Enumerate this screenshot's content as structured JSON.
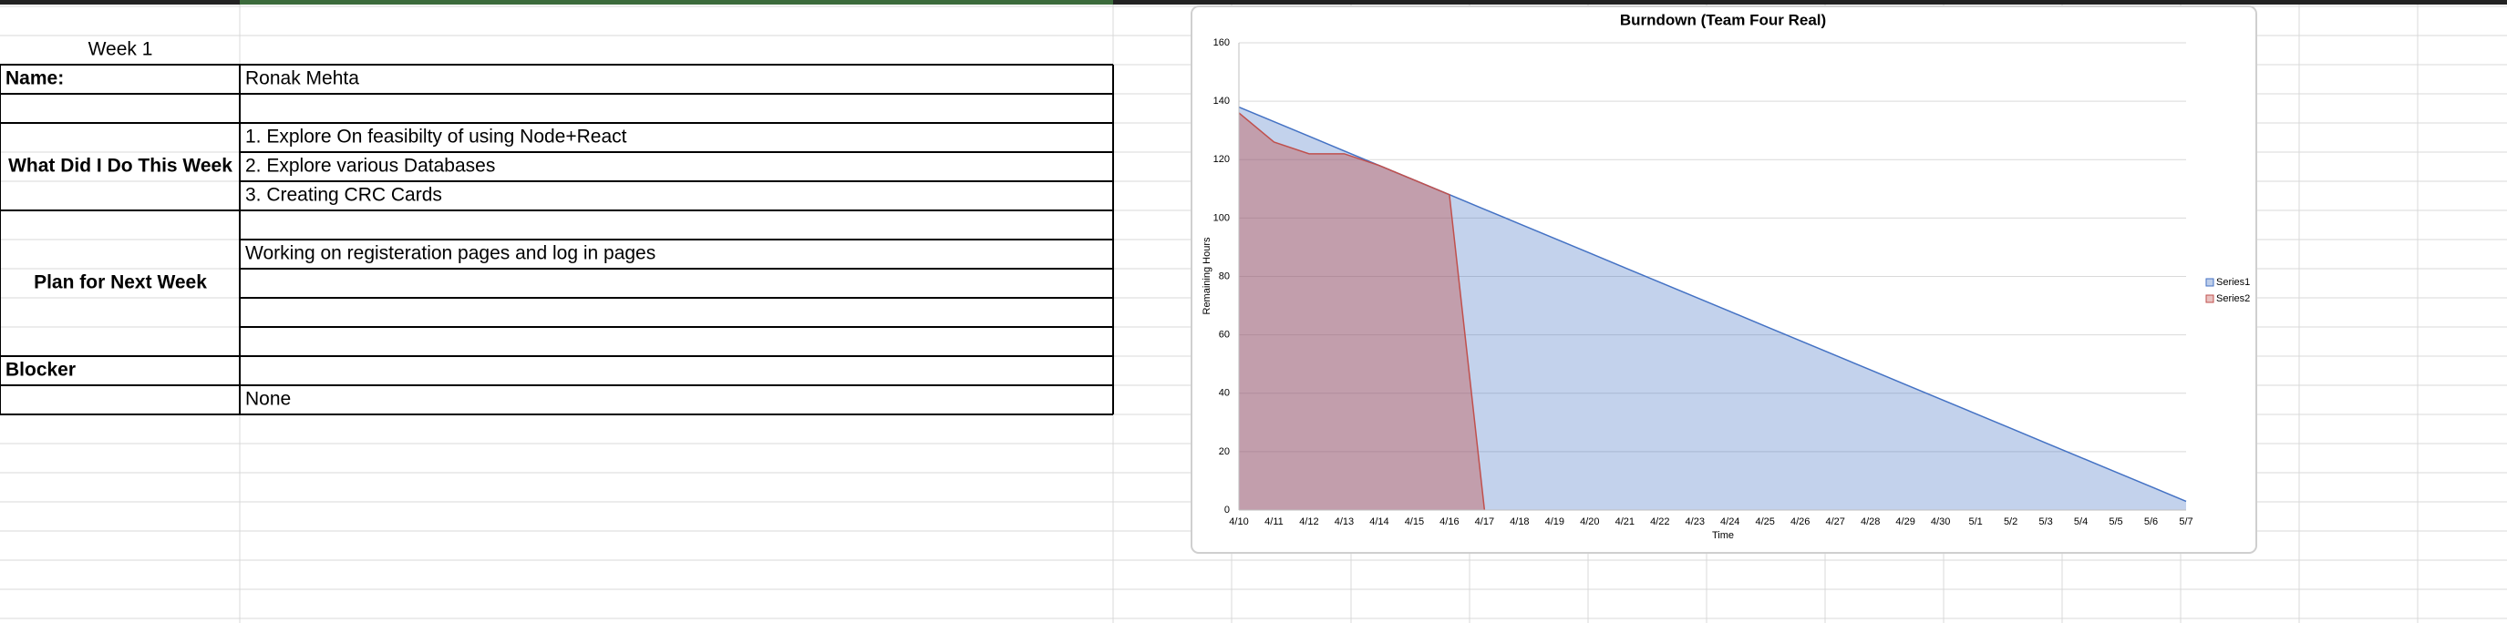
{
  "sheet": {
    "week_label": "Week 1",
    "name_label": "Name:",
    "name": "Ronak Mehta",
    "done_label": "What Did I Do This Week",
    "done": [
      "1. Explore On feasibilty of using Node+React",
      "2. Explore various Databases",
      "3. Creating CRC Cards"
    ],
    "plan_label": "Plan for Next Week",
    "plan": [
      "Working on registeration pages and log in pages"
    ],
    "blocker_label": "Blocker",
    "blocker": "None"
  },
  "chart_data": {
    "type": "area",
    "title": "Burndown (Team Four Real)",
    "x_label": "Time",
    "y_label": "Remaining Hours",
    "categories": [
      "4/10",
      "4/11",
      "4/12",
      "4/13",
      "4/14",
      "4/15",
      "4/16",
      "4/17",
      "4/18",
      "4/19",
      "4/20",
      "4/21",
      "4/22",
      "4/23",
      "4/24",
      "4/25",
      "4/26",
      "4/27",
      "4/28",
      "4/29",
      "4/30",
      "5/1",
      "5/2",
      "5/3",
      "5/4",
      "5/5",
      "5/6",
      "5/7"
    ],
    "series": [
      {
        "name": "Series1",
        "color": "#4472c4",
        "values": [
          138,
          133,
          128,
          123,
          118,
          113,
          108,
          103,
          98,
          93,
          88,
          83,
          78,
          73,
          68,
          63,
          58,
          53,
          48,
          43,
          38,
          33,
          28,
          23,
          18,
          13,
          8,
          3
        ]
      },
      {
        "name": "Series2",
        "color": "#c0504d",
        "values": [
          136,
          126,
          122,
          122,
          118,
          113,
          108,
          0,
          null,
          null,
          null,
          null,
          null,
          null,
          null,
          null,
          null,
          null,
          null,
          null,
          null,
          null,
          null,
          null,
          null,
          null,
          null,
          null
        ]
      }
    ],
    "ylim": [
      0,
      160
    ],
    "yticks": [
      0,
      20,
      40,
      60,
      80,
      100,
      120,
      140,
      160
    ],
    "grid": true,
    "legend": "right"
  }
}
